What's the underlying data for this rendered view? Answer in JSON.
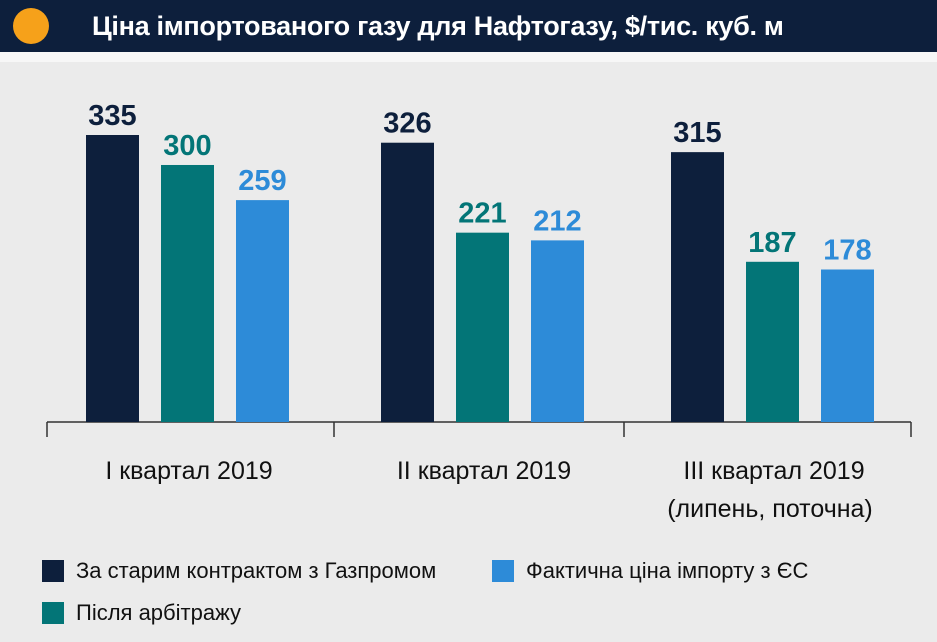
{
  "header": {
    "title": "Ціна імпортованого газу для Нафтогазу, $/тис. куб. м",
    "icon_color": "#f6a11a",
    "background": "#0d1f3c"
  },
  "chart_data": {
    "type": "bar",
    "title": "Ціна імпортованого газу для Нафтогазу, $/тис. куб. м",
    "categories": [
      [
        "І квартал 2019"
      ],
      [
        "ІІ квартал 2019"
      ],
      [
        "ІІІ квартал 2019",
        "(липень, поточна)"
      ]
    ],
    "series": [
      {
        "name": "За старим контрактом з Газпромом",
        "color": "#0d1f3c",
        "label_color": "#0d1f3c",
        "values": [
          335,
          326,
          315
        ]
      },
      {
        "name": "Після арбітражу",
        "color": "#037577",
        "label_color": "#037577",
        "values": [
          300,
          221,
          187
        ]
      },
      {
        "name": "Фактична ціна імпорту з ЄС",
        "color": "#2d8bd8",
        "label_color": "#2d8bd8",
        "values": [
          259,
          212,
          178
        ]
      }
    ],
    "ylim": [
      0,
      360
    ],
    "xlabel": "",
    "ylabel": "",
    "grid": false,
    "legend_position": "bottom"
  }
}
